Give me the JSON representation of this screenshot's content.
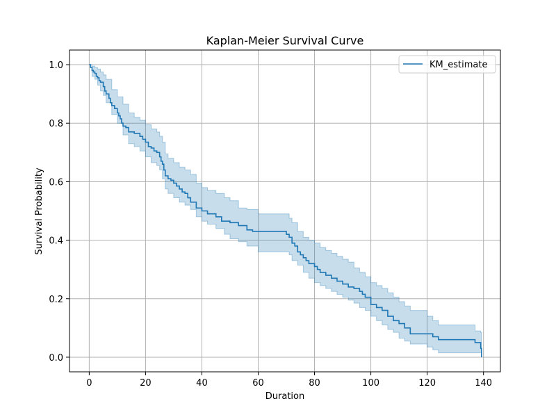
{
  "chart_data": {
    "type": "line",
    "title": "Kaplan-Meier Survival Curve",
    "xlabel": "Duration",
    "ylabel": "Survival Probability",
    "xlim": [
      -7,
      146
    ],
    "ylim": [
      -0.05,
      1.05
    ],
    "xticks": [
      0,
      20,
      40,
      60,
      80,
      100,
      120,
      140
    ],
    "yticks": [
      0.0,
      0.2,
      0.4,
      0.6,
      0.8,
      1.0
    ],
    "xtick_labels": [
      "0",
      "20",
      "40",
      "60",
      "80",
      "100",
      "120",
      "140"
    ],
    "ytick_labels": [
      "0.0",
      "0.2",
      "0.4",
      "0.6",
      "0.8",
      "1.0"
    ],
    "grid": true,
    "legend_position": "top-right",
    "colors": {
      "line": "#1f77b4",
      "band": "#1f77b4",
      "grid": "#b0b0b0"
    },
    "series": [
      {
        "name": "KM_estimate",
        "step": "post",
        "x": [
          0,
          0.5,
          1,
          1.5,
          2,
          2.5,
          3,
          3.5,
          4,
          5,
          5.5,
          6,
          7,
          7.5,
          8,
          9,
          10,
          10.5,
          11,
          11.5,
          12,
          13,
          14,
          16,
          18,
          19,
          20,
          21,
          22,
          23,
          24,
          25,
          25.5,
          26,
          26.5,
          27,
          28,
          29,
          30,
          31,
          32,
          33,
          34,
          35,
          36,
          37,
          38,
          40,
          42,
          45,
          47,
          50,
          53,
          56,
          58,
          60,
          63,
          70,
          71,
          72,
          73,
          74,
          75,
          76,
          77,
          78,
          80,
          81,
          82,
          84,
          86,
          88,
          90,
          92,
          94,
          96,
          97,
          98,
          100,
          102,
          104,
          106,
          108,
          110,
          112,
          114,
          120,
          122,
          124,
          128,
          137,
          139,
          139.3
        ],
        "y": [
          1.0,
          0.99,
          0.98,
          0.975,
          0.97,
          0.96,
          0.955,
          0.945,
          0.94,
          0.925,
          0.91,
          0.9,
          0.885,
          0.87,
          0.86,
          0.85,
          0.835,
          0.825,
          0.815,
          0.8,
          0.79,
          0.785,
          0.77,
          0.765,
          0.755,
          0.745,
          0.735,
          0.72,
          0.715,
          0.705,
          0.7,
          0.685,
          0.67,
          0.66,
          0.64,
          0.62,
          0.61,
          0.605,
          0.595,
          0.585,
          0.575,
          0.565,
          0.56,
          0.545,
          0.53,
          0.53,
          0.51,
          0.5,
          0.49,
          0.48,
          0.465,
          0.46,
          0.45,
          0.435,
          0.43,
          0.43,
          0.43,
          0.42,
          0.41,
          0.39,
          0.38,
          0.36,
          0.35,
          0.34,
          0.33,
          0.32,
          0.31,
          0.3,
          0.29,
          0.28,
          0.27,
          0.26,
          0.25,
          0.24,
          0.235,
          0.225,
          0.215,
          0.205,
          0.18,
          0.17,
          0.16,
          0.14,
          0.125,
          0.115,
          0.1,
          0.08,
          0.08,
          0.07,
          0.06,
          0.06,
          0.05,
          0.03,
          0.0
        ]
      }
    ],
    "confidence_band": {
      "x": [
        0,
        1,
        2,
        3,
        4,
        5,
        6,
        8,
        10,
        12,
        14,
        16,
        18,
        20,
        22,
        24,
        25,
        26,
        27,
        28,
        30,
        32,
        34,
        36,
        38,
        40,
        42,
        45,
        48,
        50,
        53,
        56,
        60,
        63,
        70,
        71,
        72,
        74,
        76,
        78,
        80,
        82,
        84,
        86,
        88,
        90,
        92,
        94,
        96,
        98,
        100,
        102,
        104,
        106,
        108,
        110,
        112,
        114,
        120,
        122,
        124,
        128,
        137,
        139,
        139.3
      ],
      "lower": [
        1.0,
        0.96,
        0.95,
        0.93,
        0.91,
        0.895,
        0.87,
        0.83,
        0.8,
        0.76,
        0.73,
        0.72,
        0.705,
        0.685,
        0.665,
        0.655,
        0.64,
        0.61,
        0.575,
        0.56,
        0.545,
        0.53,
        0.52,
        0.505,
        0.48,
        0.465,
        0.455,
        0.44,
        0.42,
        0.405,
        0.395,
        0.38,
        0.36,
        0.36,
        0.36,
        0.35,
        0.33,
        0.315,
        0.29,
        0.27,
        0.255,
        0.245,
        0.235,
        0.225,
        0.215,
        0.205,
        0.195,
        0.185,
        0.17,
        0.16,
        0.14,
        0.125,
        0.11,
        0.095,
        0.085,
        0.065,
        0.055,
        0.045,
        0.035,
        0.025,
        0.015,
        0.015,
        0.015,
        0.015,
        0.0
      ],
      "upper": [
        1.0,
        0.995,
        0.99,
        0.985,
        0.975,
        0.965,
        0.95,
        0.915,
        0.89,
        0.865,
        0.835,
        0.82,
        0.81,
        0.795,
        0.78,
        0.77,
        0.755,
        0.735,
        0.695,
        0.68,
        0.665,
        0.65,
        0.64,
        0.625,
        0.595,
        0.58,
        0.57,
        0.56,
        0.545,
        0.535,
        0.51,
        0.505,
        0.49,
        0.49,
        0.49,
        0.475,
        0.46,
        0.43,
        0.41,
        0.4,
        0.39,
        0.375,
        0.365,
        0.355,
        0.345,
        0.335,
        0.325,
        0.305,
        0.29,
        0.275,
        0.255,
        0.245,
        0.235,
        0.22,
        0.205,
        0.19,
        0.175,
        0.16,
        0.14,
        0.125,
        0.11,
        0.11,
        0.09,
        0.085,
        0.085
      ]
    }
  }
}
